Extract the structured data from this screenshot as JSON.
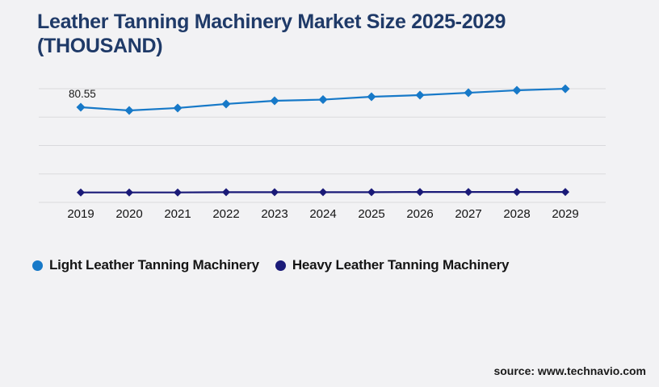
{
  "page": {
    "background": "#f2f2f4"
  },
  "chart_data": {
    "type": "line",
    "title": "Leather Tanning Machinery Market Size 2025-2029 (THOUSAND)",
    "title_color": "#1f3a68",
    "x": [
      "2019",
      "2020",
      "2021",
      "2022",
      "2023",
      "2024",
      "2025",
      "2026",
      "2027",
      "2028",
      "2029"
    ],
    "series": [
      {
        "name": "Light Leather Tanning Machinery",
        "color": "#1779c8",
        "marker": "diamond",
        "values": [
          80.55,
          77.8,
          79.9,
          83.3,
          86.0,
          87.0,
          89.4,
          90.8,
          92.8,
          94.9,
          96.2
        ]
      },
      {
        "name": "Heavy Leather Tanning Machinery",
        "color": "#1a1a78",
        "marker": "diamond",
        "values": [
          8.4,
          8.4,
          8.4,
          8.6,
          8.6,
          8.6,
          8.6,
          8.8,
          8.8,
          8.8,
          8.8
        ]
      }
    ],
    "annotations": [
      {
        "series": "Light Leather Tanning Machinery",
        "x": "2019",
        "text": "80.55"
      }
    ],
    "xlabel": "",
    "ylabel": "",
    "ylim": [
      0,
      100
    ],
    "grid": true,
    "gridline_count": 5,
    "y_axis_labels_visible": false,
    "legend_position": "bottom-left",
    "gridline_color": "#d9d9dc"
  },
  "footer": {
    "source": "source: www.technavio.com"
  }
}
